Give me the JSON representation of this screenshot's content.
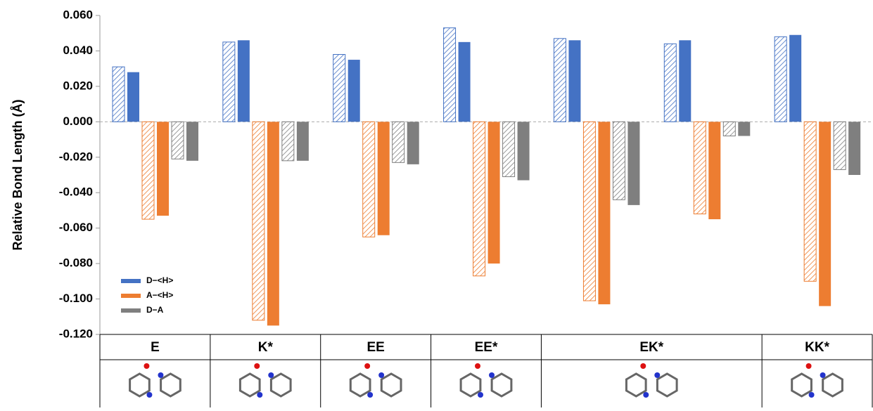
{
  "chart_data": {
    "type": "bar",
    "y_label": "Relative Bond Length (Å)",
    "categories": [
      "E",
      "K*",
      "EE",
      "EE*",
      "EK*",
      null,
      "KK*"
    ],
    "series": [
      {
        "name": "D−<H>",
        "color": "#4472c4",
        "hatched_values": [
          0.031,
          0.045,
          0.038,
          0.053,
          0.047,
          0.044,
          0.048
        ],
        "values": [
          0.028,
          0.046,
          0.035,
          0.045,
          0.046,
          0.046,
          0.049
        ]
      },
      {
        "name": "A−<H>",
        "color": "#ed7d31",
        "hatched_values": [
          -0.055,
          -0.112,
          -0.065,
          -0.087,
          -0.101,
          -0.052,
          -0.09
        ],
        "values": [
          -0.053,
          -0.115,
          -0.064,
          -0.08,
          -0.103,
          -0.055,
          -0.104
        ]
      },
      {
        "name": "D−A",
        "color": "#7f7f7f",
        "hatched_values": [
          -0.021,
          -0.022,
          -0.023,
          -0.031,
          -0.044,
          -0.008,
          -0.027
        ],
        "values": [
          -0.022,
          -0.022,
          -0.024,
          -0.033,
          -0.047,
          -0.008,
          -0.03
        ]
      }
    ],
    "ylim": [
      -0.12,
      0.06
    ],
    "yticks": [
      {
        "value": 0.06,
        "label": "0.060"
      },
      {
        "value": 0.04,
        "label": "0.040"
      },
      {
        "value": 0.02,
        "label": "0.020"
      },
      {
        "value": 0,
        "label": "0.000"
      },
      {
        "value": -0.02,
        "label": "-0.020"
      },
      {
        "value": -0.04,
        "label": "-0.040"
      },
      {
        "value": -0.06,
        "label": "-0.060"
      },
      {
        "value": -0.08,
        "label": "-0.080"
      },
      {
        "value": -0.1,
        "label": "-0.100"
      },
      {
        "value": -0.12,
        "label": "-0.120"
      }
    ],
    "legend": "lower left"
  }
}
